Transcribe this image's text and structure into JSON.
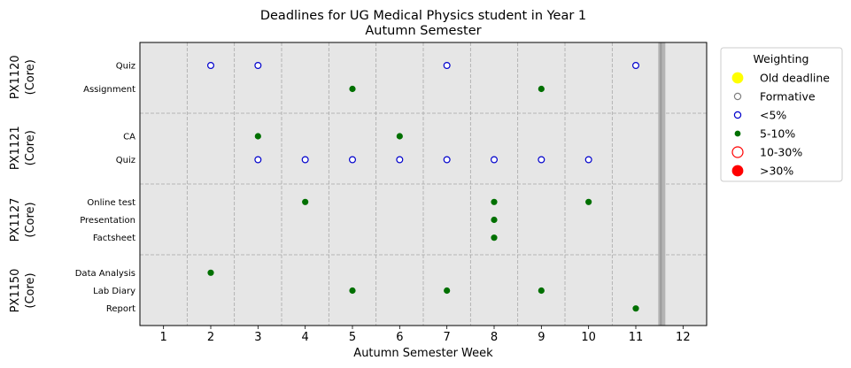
{
  "chart_data": {
    "type": "scatter",
    "title_line1": "Deadlines for UG Medical Physics student in Year 1",
    "title_line2": "Autumn Semester",
    "xlabel": "Autumn Semester Week",
    "xlim": [
      0.5,
      12.5
    ],
    "xticks": [
      1,
      2,
      3,
      4,
      5,
      6,
      7,
      8,
      9,
      10,
      11,
      12
    ],
    "grid": "dashed, between weeks and between module groups",
    "current_week_marker": 11.55,
    "legend": {
      "title": "Weighting",
      "placement": "outside upper right",
      "entries": [
        {
          "label": "Old deadline",
          "marker": "old"
        },
        {
          "label": "Formative",
          "marker": "formative"
        },
        {
          "label": "<5%",
          "marker": "lt5"
        },
        {
          "label": "5-10%",
          "marker": "w5to10"
        },
        {
          "label": "10-30%",
          "marker": "w10to30"
        },
        {
          "label": ">30%",
          "marker": "gt30"
        }
      ]
    },
    "markers": {
      "old": {
        "color": "#ffff00",
        "filled": true
      },
      "formative": {
        "color": "#808080",
        "filled": false
      },
      "lt5": {
        "color": "#0000cc",
        "filled": false
      },
      "w5to10": {
        "color": "#007000",
        "filled": true
      },
      "w10to30": {
        "color": "#ff0000",
        "filled": false
      },
      "gt30": {
        "color": "#ff0000",
        "filled": true
      }
    },
    "modules": [
      {
        "name": "PX1120",
        "type": "(Core)",
        "assessments": [
          {
            "label": "Quiz",
            "weight": "lt5",
            "weeks": [
              2,
              3,
              7,
              11
            ]
          },
          {
            "label": "Assignment",
            "weight": "w5to10",
            "weeks": [
              5,
              9
            ]
          }
        ]
      },
      {
        "name": "PX1121",
        "type": "(Core)",
        "assessments": [
          {
            "label": "CA",
            "weight": "w5to10",
            "weeks": [
              3,
              6
            ]
          },
          {
            "label": "Quiz",
            "weight": "lt5",
            "weeks": [
              3,
              4,
              5,
              6,
              7,
              8,
              9,
              10
            ]
          }
        ]
      },
      {
        "name": "PX1127",
        "type": "(Core)",
        "assessments": [
          {
            "label": "Online test",
            "weight": "w5to10",
            "weeks": [
              4,
              8,
              10
            ]
          },
          {
            "label": "Presentation",
            "weight": "w5to10",
            "weeks": [
              8
            ]
          },
          {
            "label": "Factsheet",
            "weight": "w5to10",
            "weeks": [
              8
            ]
          }
        ]
      },
      {
        "name": "PX1150",
        "type": "(Core)",
        "assessments": [
          {
            "label": "Data Analysis",
            "weight": "w5to10",
            "weeks": [
              2
            ]
          },
          {
            "label": "Lab Diary",
            "weight": "w5to10",
            "weeks": [
              5,
              7,
              9
            ]
          },
          {
            "label": "Report",
            "weight": "w5to10",
            "weeks": [
              11
            ]
          }
        ]
      }
    ]
  }
}
